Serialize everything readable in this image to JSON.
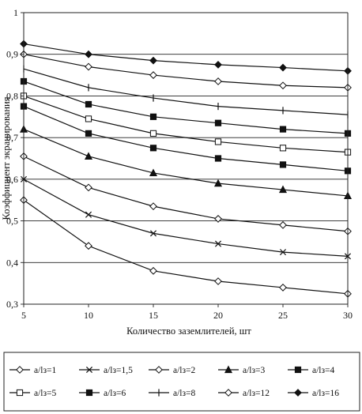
{
  "chart_data": {
    "type": "line",
    "title": "",
    "xlabel": "Количество заземлителей, шт",
    "ylabel": "Коэффициент экранирования",
    "x": [
      5,
      10,
      15,
      20,
      25,
      30
    ],
    "xlim": [
      5,
      30
    ],
    "ylim": [
      0.3,
      1.0
    ],
    "x_ticks": [
      "5",
      "10",
      "15",
      "20",
      "25",
      "30"
    ],
    "y_ticks": [
      "0,3",
      "0,4",
      "0,5",
      "0,6",
      "0,7",
      "0,8",
      "0,9",
      "1"
    ],
    "grid": "horizontal",
    "legend_position": "bottom",
    "series": [
      {
        "name": "a/lз=1",
        "marker": "diamond-open",
        "values": [
          0.55,
          0.44,
          0.38,
          0.355,
          0.34,
          0.325
        ]
      },
      {
        "name": "a/lз=1,5",
        "marker": "x",
        "values": [
          0.6,
          0.515,
          0.47,
          0.445,
          0.425,
          0.415
        ]
      },
      {
        "name": "a/lз=2",
        "marker": "diamond-open",
        "values": [
          0.655,
          0.58,
          0.535,
          0.505,
          0.49,
          0.475
        ]
      },
      {
        "name": "a/lз=3",
        "marker": "triangle",
        "values": [
          0.72,
          0.655,
          0.615,
          0.59,
          0.575,
          0.56
        ]
      },
      {
        "name": "a/lз=4",
        "marker": "square",
        "values": [
          0.775,
          0.71,
          0.675,
          0.65,
          0.635,
          0.62
        ]
      },
      {
        "name": "a/lз=5",
        "marker": "square-open",
        "values": [
          0.8,
          0.745,
          0.71,
          0.69,
          0.675,
          0.665
        ]
      },
      {
        "name": "a/lз=6",
        "marker": "square",
        "values": [
          0.835,
          0.78,
          0.75,
          0.735,
          0.72,
          0.71
        ]
      },
      {
        "name": "a/lз=8",
        "marker": "plus",
        "values": [
          0.865,
          0.82,
          0.795,
          0.775,
          0.765,
          0.755
        ]
      },
      {
        "name": "a/lз=12",
        "marker": "diamond-open",
        "values": [
          0.9,
          0.87,
          0.85,
          0.835,
          0.825,
          0.82
        ]
      },
      {
        "name": "a/lз=16",
        "marker": "diamond",
        "values": [
          0.925,
          0.9,
          0.885,
          0.875,
          0.868,
          0.86
        ]
      }
    ]
  }
}
